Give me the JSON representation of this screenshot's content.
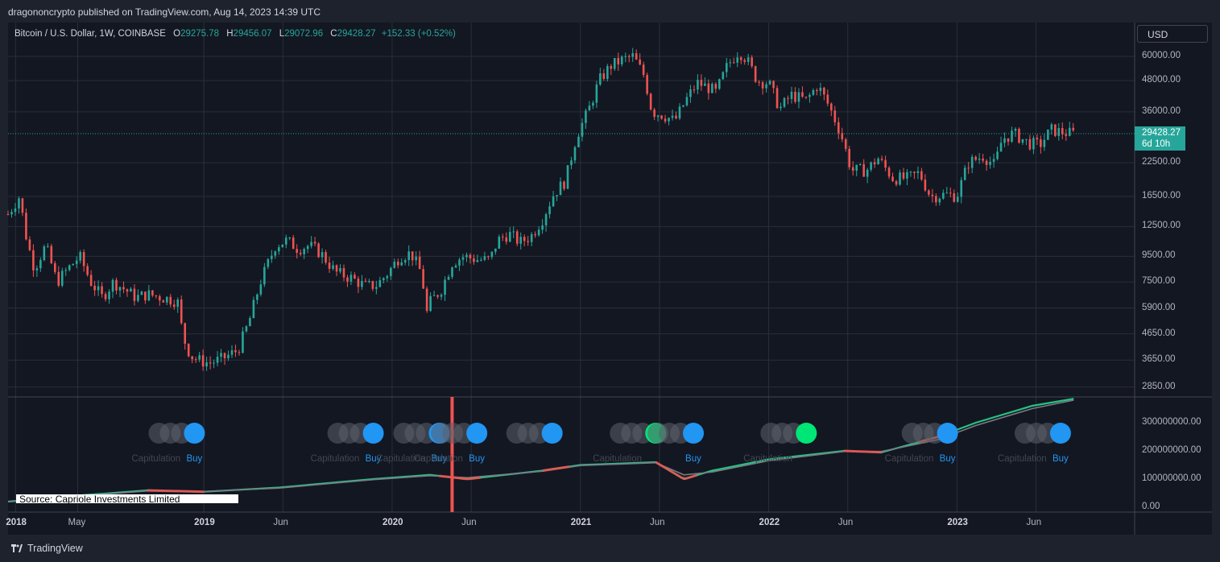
{
  "publisher_line": "dragononcrypto published on TradingView.com, Aug 14, 2023 14:39 UTC",
  "header": {
    "symbol": "Bitcoin / U.S. Dollar, 1W, COINBASE",
    "o_label": "O",
    "o": "29275.78",
    "h_label": "H",
    "h": "29456.07",
    "l_label": "L",
    "l": "29072.96",
    "c_label": "C",
    "c": "29428.27",
    "change": "+152.33 (+0.52%)"
  },
  "currency": "USD",
  "last_price": {
    "value": "29428.27",
    "countdown": "6d 10h"
  },
  "colors": {
    "up": "#26a69a",
    "down": "#ef5350",
    "bg": "#131722",
    "grid": "#2a2e39",
    "green_line": "#26c281",
    "gray_line": "#787b86",
    "blue": "#2196f3",
    "bright_green": "#00e676"
  },
  "price_axis": [
    "60000.00",
    "48000.00",
    "36000.00",
    "22500.00",
    "16500.00",
    "12500.00",
    "9500.00",
    "7500.00",
    "5900.00",
    "4650.00",
    "3650.00",
    "2850.00"
  ],
  "indicator_axis": [
    "300000000.00",
    "200000000.00",
    "100000000.00",
    "0.00"
  ],
  "time_axis": [
    {
      "label": "2018",
      "bold": true
    },
    {
      "label": "May",
      "bold": false
    },
    {
      "label": "2019",
      "bold": true
    },
    {
      "label": "Jun",
      "bold": false
    },
    {
      "label": "2020",
      "bold": true
    },
    {
      "label": "Jun",
      "bold": false
    },
    {
      "label": "2021",
      "bold": true
    },
    {
      "label": "Jun",
      "bold": false
    },
    {
      "label": "2022",
      "bold": true
    },
    {
      "label": "Jun",
      "bold": false
    },
    {
      "label": "2023",
      "bold": true
    },
    {
      "label": "Jun",
      "bold": false
    }
  ],
  "signals": [
    {
      "date": 2018.95,
      "kind": "blue",
      "text": "Buy",
      "faded_text": "Capitulation"
    },
    {
      "date": 2019.9,
      "kind": "blue",
      "text": "Buy",
      "faded_text": "Capitulation"
    },
    {
      "date": 2020.25,
      "kind": "blue",
      "text": "Buy",
      "faded_text": "Capitulation"
    },
    {
      "date": 2020.45,
      "kind": "blue",
      "text": "Buy",
      "faded_text": "Capitulation"
    },
    {
      "date": 2020.85,
      "kind": "blue",
      "text": "",
      "faded_text": ""
    },
    {
      "date": 2021.4,
      "kind": "green",
      "text": "",
      "faded_text": "Capitulation"
    },
    {
      "date": 2021.6,
      "kind": "blue",
      "text": "Buy",
      "faded_text": ""
    },
    {
      "date": 2022.2,
      "kind": "green",
      "text": "",
      "faded_text": "Capitulation"
    },
    {
      "date": 2022.95,
      "kind": "blue",
      "text": "Buy",
      "faded_text": "Capitulation"
    },
    {
      "date": 2023.55,
      "kind": "blue",
      "text": "Buy",
      "faded_text": "Capitulation"
    }
  ],
  "source_note": "Source: Capriole Investments Limited",
  "footer": "TradingView",
  "chart_data": {
    "type": "candlestick",
    "title": "Bitcoin / U.S. Dollar, 1W, COINBASE",
    "y_scale": "log",
    "ylim": [
      2500,
      70000
    ],
    "x_range": [
      "2017-12",
      "2023-10"
    ],
    "weekly_close_path": [
      [
        2017.96,
        14000
      ],
      [
        2018.02,
        16500
      ],
      [
        2018.06,
        11000
      ],
      [
        2018.1,
        8500
      ],
      [
        2018.16,
        10500
      ],
      [
        2018.22,
        7500
      ],
      [
        2018.28,
        8500
      ],
      [
        2018.34,
        9500
      ],
      [
        2018.4,
        7500
      ],
      [
        2018.46,
        6500
      ],
      [
        2018.52,
        7500
      ],
      [
        2018.58,
        7000
      ],
      [
        2018.64,
        6500
      ],
      [
        2018.7,
        6700
      ],
      [
        2018.78,
        6500
      ],
      [
        2018.86,
        6300
      ],
      [
        2018.89,
        4500
      ],
      [
        2018.93,
        3800
      ],
      [
        2018.97,
        3650
      ],
      [
        2019.03,
        3550
      ],
      [
        2019.1,
        3700
      ],
      [
        2019.18,
        4000
      ],
      [
        2019.24,
        5200
      ],
      [
        2019.3,
        7500
      ],
      [
        2019.38,
        10500
      ],
      [
        2019.44,
        11000
      ],
      [
        2019.5,
        10200
      ],
      [
        2019.56,
        10500
      ],
      [
        2019.62,
        9800
      ],
      [
        2019.7,
        8200
      ],
      [
        2019.78,
        7800
      ],
      [
        2019.86,
        7200
      ],
      [
        2019.92,
        7300
      ],
      [
        2019.98,
        8200
      ],
      [
        2020.04,
        9500
      ],
      [
        2020.1,
        9800
      ],
      [
        2020.16,
        8000
      ],
      [
        2020.18,
        5500
      ],
      [
        2020.2,
        6200
      ],
      [
        2020.26,
        7000
      ],
      [
        2020.32,
        9000
      ],
      [
        2020.38,
        9500
      ],
      [
        2020.46,
        9200
      ],
      [
        2020.52,
        9200
      ],
      [
        2020.56,
        11000
      ],
      [
        2020.62,
        11700
      ],
      [
        2020.68,
        10800
      ],
      [
        2020.74,
        11500
      ],
      [
        2020.8,
        13500
      ],
      [
        2020.86,
        17000
      ],
      [
        2020.92,
        19000
      ],
      [
        2020.98,
        29000
      ],
      [
        2021.04,
        36000
      ],
      [
        2021.1,
        48000
      ],
      [
        2021.16,
        55000
      ],
      [
        2021.22,
        58000
      ],
      [
        2021.28,
        60000
      ],
      [
        2021.34,
        50000
      ],
      [
        2021.38,
        36000
      ],
      [
        2021.44,
        35000
      ],
      [
        2021.5,
        33000
      ],
      [
        2021.56,
        40000
      ],
      [
        2021.62,
        47000
      ],
      [
        2021.68,
        45000
      ],
      [
        2021.72,
        43000
      ],
      [
        2021.78,
        55000
      ],
      [
        2021.84,
        63000
      ],
      [
        2021.88,
        59000
      ],
      [
        2021.94,
        48000
      ],
      [
        2022.0,
        47000
      ],
      [
        2022.06,
        37000
      ],
      [
        2022.12,
        42000
      ],
      [
        2022.2,
        40000
      ],
      [
        2022.26,
        46000
      ],
      [
        2022.32,
        38000
      ],
      [
        2022.38,
        30000
      ],
      [
        2022.44,
        21000
      ],
      [
        2022.52,
        21000
      ],
      [
        2022.58,
        23500
      ],
      [
        2022.66,
        19500
      ],
      [
        2022.74,
        19500
      ],
      [
        2022.8,
        20500
      ],
      [
        2022.86,
        16500
      ],
      [
        2022.94,
        16800
      ],
      [
        2023.0,
        16600
      ],
      [
        2023.06,
        22500
      ],
      [
        2023.14,
        24000
      ],
      [
        2023.2,
        22000
      ],
      [
        2023.24,
        28000
      ],
      [
        2023.3,
        29500
      ],
      [
        2023.38,
        27000
      ],
      [
        2023.44,
        26500
      ],
      [
        2023.5,
        30500
      ],
      [
        2023.56,
        29800
      ],
      [
        2023.62,
        29428
      ]
    ],
    "indicator_series": [
      {
        "name": "",
        "color": "green",
        "points": [
          [
            2017.96,
            20000000
          ],
          [
            2018.3,
            40000000
          ],
          [
            2018.7,
            60000000
          ],
          [
            2019.0,
            55000000
          ],
          [
            2019.4,
            70000000
          ],
          [
            2019.9,
            100000000
          ],
          [
            2020.2,
            115000000
          ],
          [
            2020.4,
            100000000
          ],
          [
            2020.8,
            130000000
          ],
          [
            2021.0,
            150000000
          ],
          [
            2021.4,
            160000000
          ],
          [
            2021.55,
            100000000
          ],
          [
            2021.7,
            130000000
          ],
          [
            2022.0,
            170000000
          ],
          [
            2022.4,
            200000000
          ],
          [
            2022.6,
            195000000
          ],
          [
            2022.9,
            250000000
          ],
          [
            2023.1,
            300000000
          ],
          [
            2023.4,
            360000000
          ],
          [
            2023.62,
            385000000
          ]
        ]
      },
      {
        "name": "",
        "color": "gray",
        "points": [
          [
            2017.96,
            20000000
          ],
          [
            2018.3,
            38000000
          ],
          [
            2018.7,
            58000000
          ],
          [
            2019.0,
            56000000
          ],
          [
            2019.4,
            68000000
          ],
          [
            2019.9,
            98000000
          ],
          [
            2020.2,
            112000000
          ],
          [
            2020.4,
            105000000
          ],
          [
            2020.8,
            128000000
          ],
          [
            2021.0,
            148000000
          ],
          [
            2021.4,
            158000000
          ],
          [
            2021.55,
            115000000
          ],
          [
            2021.7,
            125000000
          ],
          [
            2022.0,
            165000000
          ],
          [
            2022.4,
            198000000
          ],
          [
            2022.6,
            198000000
          ],
          [
            2022.9,
            240000000
          ],
          [
            2023.1,
            290000000
          ],
          [
            2023.4,
            350000000
          ],
          [
            2023.62,
            380000000
          ]
        ]
      }
    ]
  }
}
